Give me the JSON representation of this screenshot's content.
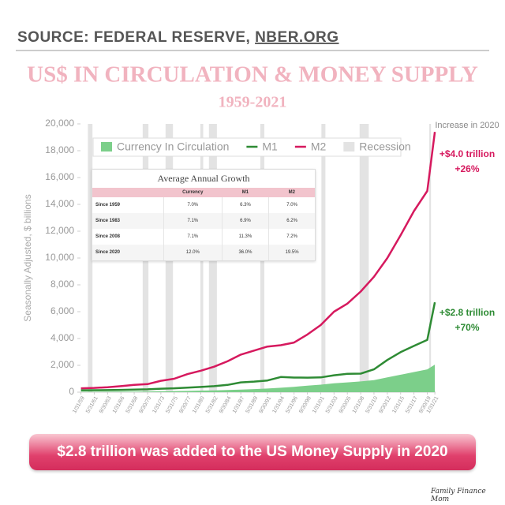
{
  "header": {
    "source": "SOURCE: FEDERAL RESERVE, ",
    "source_link": "NBER.ORG"
  },
  "chart_data": {
    "type": "line",
    "title": "US$ IN CIRCULATION & MONEY SUPPLY",
    "subtitle": "1959-2021",
    "y_label": "Seasonally Adjusted, $ billions",
    "x": [
      1959.08,
      1961.41,
      1963.75,
      1966.08,
      1968.41,
      1970.75,
      1973.08,
      1975.41,
      1977.75,
      1980.08,
      1982.41,
      1984.75,
      1987.08,
      1989.41,
      1991.75,
      1994.08,
      1996.41,
      1998.75,
      2001.08,
      2003.41,
      2005.75,
      2008.08,
      2010.41,
      2012.75,
      2015.08,
      2017.41,
      2019.75,
      2021.08
    ],
    "xlim": [
      1959,
      2021.2
    ],
    "xticks": [
      {
        "value": 1959.08,
        "label": "1/31/59"
      },
      {
        "value": 1961.41,
        "label": "5/31/61"
      },
      {
        "value": 1963.75,
        "label": "9/30/63"
      },
      {
        "value": 1966.08,
        "label": "1/31/66"
      },
      {
        "value": 1968.41,
        "label": "5/31/68"
      },
      {
        "value": 1970.75,
        "label": "9/30/70"
      },
      {
        "value": 1973.08,
        "label": "1/31/73"
      },
      {
        "value": 1975.41,
        "label": "5/31/75"
      },
      {
        "value": 1977.75,
        "label": "9/30/77"
      },
      {
        "value": 1980.08,
        "label": "1/31/80"
      },
      {
        "value": 1982.41,
        "label": "5/31/82"
      },
      {
        "value": 1984.75,
        "label": "9/30/84"
      },
      {
        "value": 1987.08,
        "label": "1/31/87"
      },
      {
        "value": 1989.41,
        "label": "5/31/89"
      },
      {
        "value": 1991.75,
        "label": "9/30/91"
      },
      {
        "value": 1994.08,
        "label": "1/31/94"
      },
      {
        "value": 1996.41,
        "label": "5/31/96"
      },
      {
        "value": 1998.75,
        "label": "9/30/98"
      },
      {
        "value": 2001.08,
        "label": "1/31/01"
      },
      {
        "value": 2003.41,
        "label": "5/31/03"
      },
      {
        "value": 2005.75,
        "label": "9/30/05"
      },
      {
        "value": 2008.08,
        "label": "1/31/08"
      },
      {
        "value": 2010.41,
        "label": "5/31/10"
      },
      {
        "value": 2012.75,
        "label": "9/30/12"
      },
      {
        "value": 2015.08,
        "label": "1/31/15"
      },
      {
        "value": 2017.41,
        "label": "5/31/17"
      },
      {
        "value": 2019.75,
        "label": "9/30/19"
      },
      {
        "value": 2021.08,
        "label": "1/31/21"
      }
    ],
    "ylim": [
      0,
      20000
    ],
    "yticks": [
      0,
      {
        "value": 2000,
        "label": "2,000"
      },
      {
        "value": 4000,
        "label": "4,000"
      },
      {
        "value": 6000,
        "label": "6,000"
      },
      {
        "value": 8000,
        "label": "8,000"
      },
      {
        "value": 10000,
        "label": "10,000"
      },
      {
        "value": 12000,
        "label": "12,000"
      },
      {
        "value": 14000,
        "label": "14,000"
      },
      {
        "value": 16000,
        "label": "16,000"
      },
      {
        "value": 18000,
        "label": "18,000"
      },
      {
        "value": 20000,
        "label": "20,000"
      }
    ],
    "series": [
      {
        "name": "Currency In Circulation",
        "kind": "area",
        "color": "#7ccf8a",
        "values": [
          30,
          31,
          35,
          40,
          45,
          55,
          65,
          80,
          95,
          115,
          135,
          160,
          190,
          230,
          270,
          330,
          400,
          480,
          560,
          660,
          730,
          800,
          900,
          1100,
          1300,
          1500,
          1700,
          2050
        ]
      },
      {
        "name": "M1",
        "kind": "line",
        "color": "#2e8b34",
        "values": [
          140,
          145,
          155,
          170,
          190,
          210,
          260,
          290,
          340,
          390,
          450,
          540,
          730,
          790,
          870,
          1130,
          1090,
          1080,
          1100,
          1260,
          1370,
          1380,
          1700,
          2400,
          2980,
          3450,
          3900,
          6700
        ]
      },
      {
        "name": "M2",
        "kind": "line",
        "color": "#d6195e",
        "values": [
          290,
          320,
          370,
          450,
          540,
          600,
          850,
          1000,
          1350,
          1600,
          1900,
          2300,
          2800,
          3100,
          3400,
          3500,
          3700,
          4300,
          5000,
          6000,
          6600,
          7500,
          8600,
          10000,
          11700,
          13500,
          15000,
          19400
        ]
      }
    ],
    "recession": {
      "name": "Recession",
      "color": "#e3e3e3",
      "spans": [
        [
          1960.3,
          1961.1
        ],
        [
          1969.9,
          1970.9
        ],
        [
          1973.9,
          1975.2
        ],
        [
          1980.0,
          1980.5
        ],
        [
          1981.5,
          1982.9
        ],
        [
          1990.5,
          1991.2
        ],
        [
          2001.2,
          2001.9
        ],
        [
          2007.9,
          2009.5
        ],
        [
          2020.1,
          2020.4
        ]
      ]
    },
    "annotations": [
      {
        "text": "Increase in 2020",
        "color": "#888888"
      },
      {
        "text": "+$4.0 trillion",
        "color": "#d6195e"
      },
      {
        "text": "+26%",
        "color": "#d6195e"
      },
      {
        "text": "+$2.8 trillion",
        "color": "#2e8b34"
      },
      {
        "text": "+70%",
        "color": "#2e8b34"
      }
    ],
    "legend": "top"
  },
  "table": {
    "title": "Average Annual Growth",
    "columns": [
      "Currency",
      "M1",
      "M2"
    ],
    "rows": [
      [
        "Since 1959",
        "7.0%",
        "6.3%",
        "7.0%"
      ],
      [
        "Since 1983",
        "7.1%",
        "6.9%",
        "6.2%"
      ],
      [
        "Since 2008",
        "7.1%",
        "11.3%",
        "7.2%"
      ],
      [
        "Since 2020",
        "12.0%",
        "36.0%",
        "19.5%"
      ]
    ]
  },
  "banner": "$2.8 trillion was added to the US Money Supply in 2020",
  "logo": "Family Finance Mom"
}
